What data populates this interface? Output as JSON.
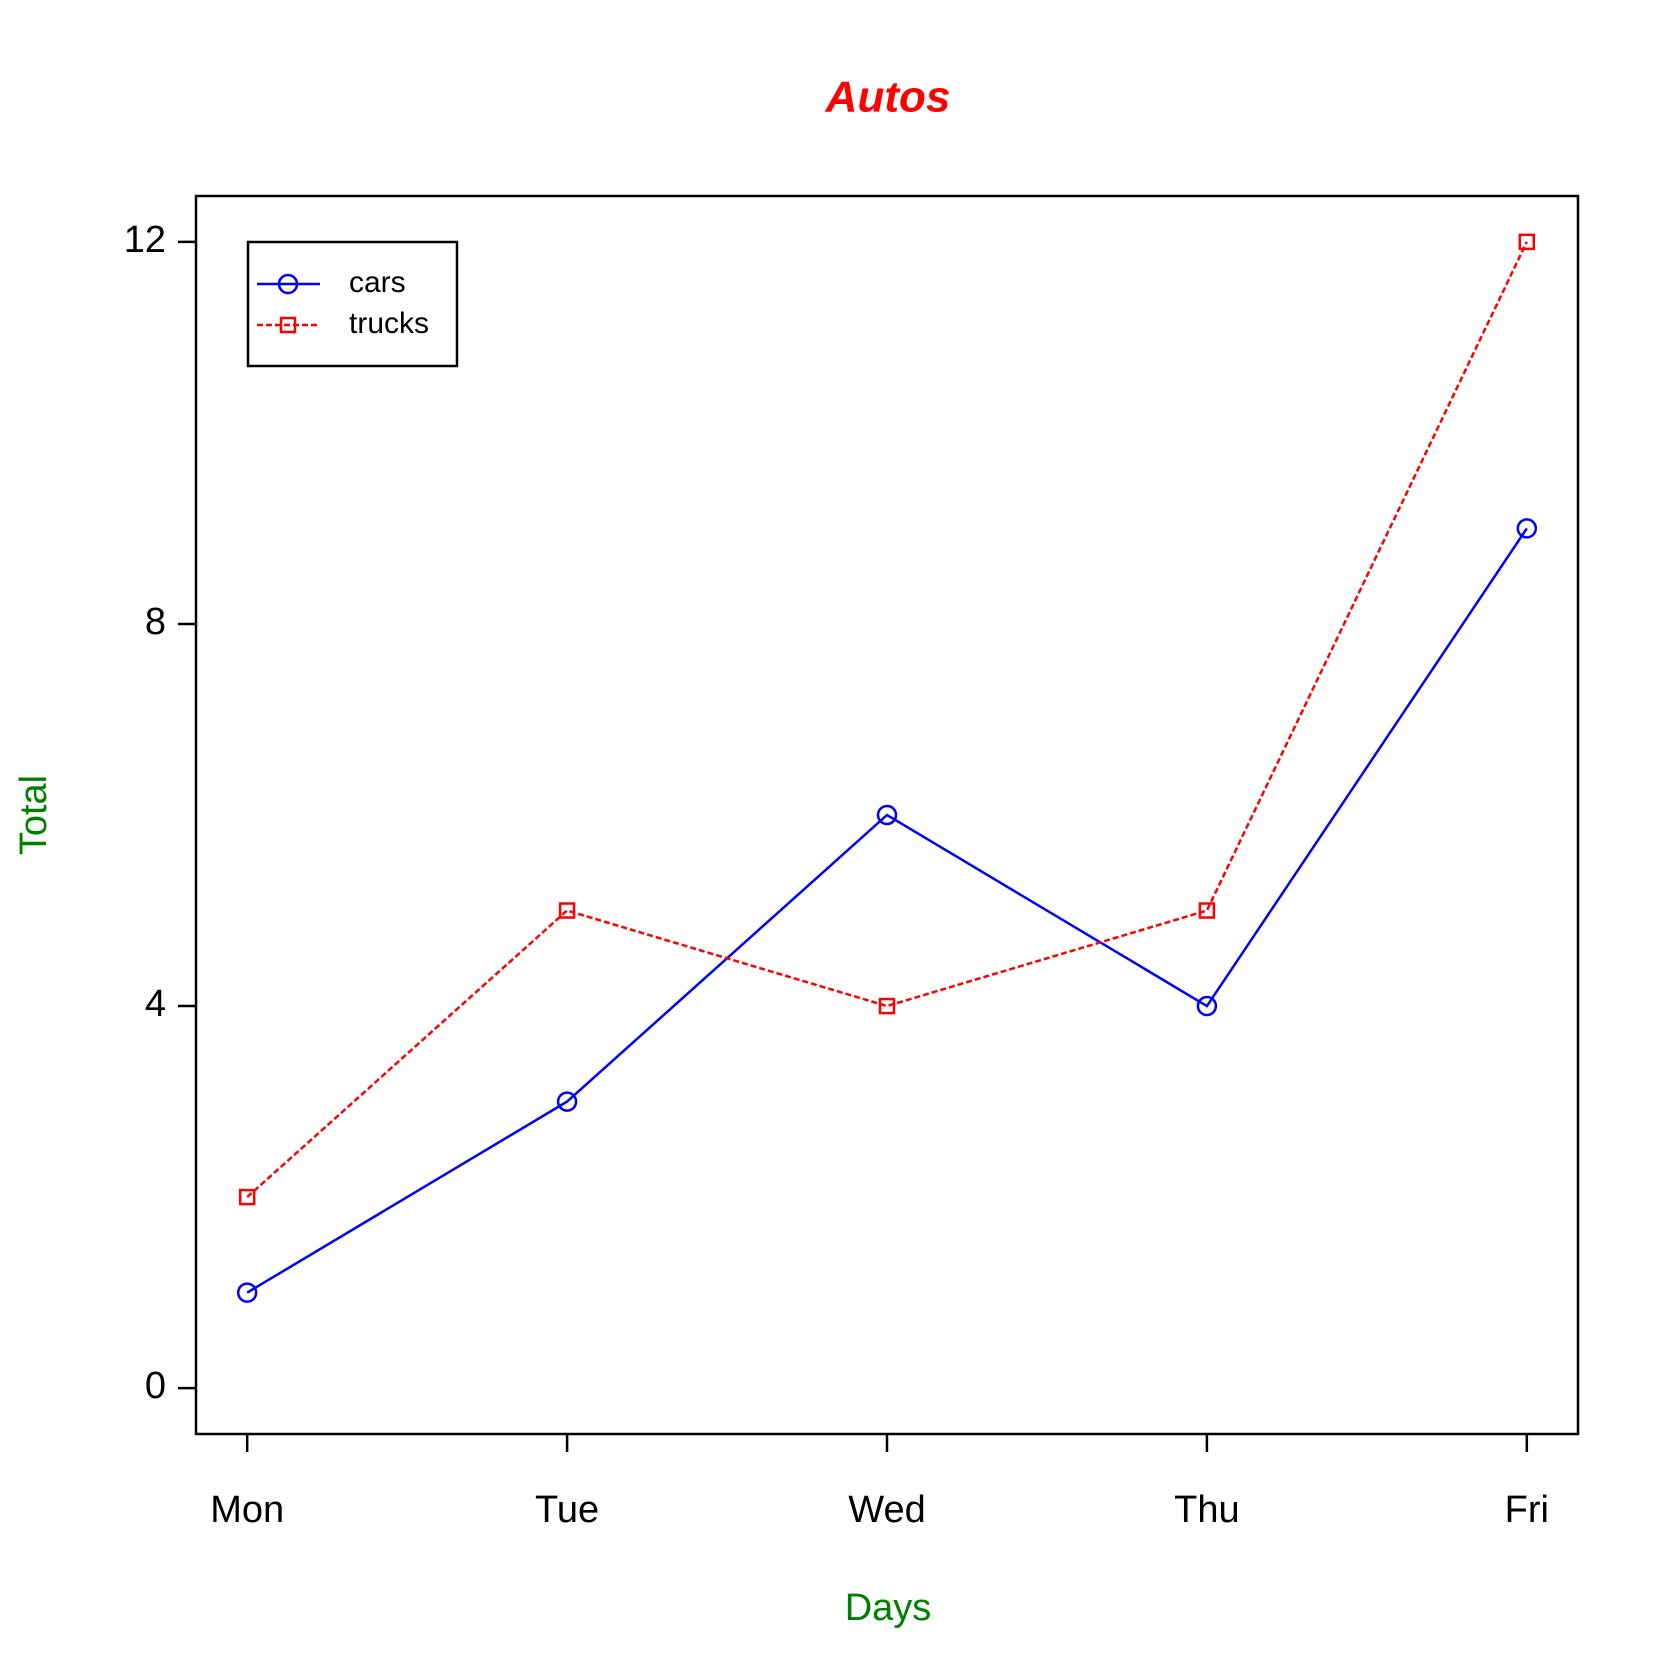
{
  "chart_data": {
    "type": "line",
    "title": "Autos",
    "x_label": "Days",
    "y_label": "Total",
    "categories": [
      "Mon",
      "Tue",
      "Wed",
      "Thu",
      "Fri"
    ],
    "series": [
      {
        "name": "cars",
        "color": "#0000ff",
        "marker": "circle",
        "line_style": "solid",
        "values": [
          1,
          3,
          6,
          4,
          9
        ]
      },
      {
        "name": "trucks",
        "color": "#ff0000",
        "marker": "square",
        "line_style": "dashed",
        "values": [
          2,
          5,
          4,
          5,
          12
        ]
      }
    ],
    "ylim": [
      -0.48,
      12.48
    ],
    "yticks": [
      0,
      4,
      8,
      12
    ],
    "grid": false,
    "legend": "topleft"
  }
}
